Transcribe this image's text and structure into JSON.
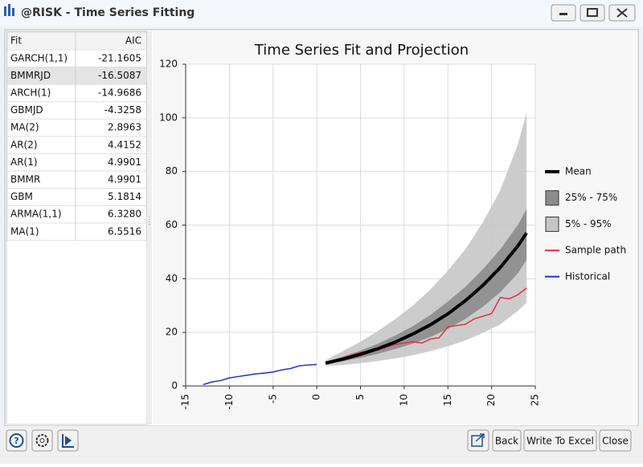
{
  "window": {
    "title": "@RISK - Time Series Fitting"
  },
  "table": {
    "columns": [
      "Fit",
      "AIC"
    ],
    "selected_row": 1,
    "rows": [
      [
        "GARCH(1,1)",
        "-21.1605"
      ],
      [
        "BMMRJD",
        "-16.5087"
      ],
      [
        "ARCH(1)",
        "-14.9686"
      ],
      [
        "GBMJD",
        "-4.3258"
      ],
      [
        "MA(2)",
        "2.8963"
      ],
      [
        "AR(2)",
        "4.4152"
      ],
      [
        "AR(1)",
        "4.9901"
      ],
      [
        "BMMR",
        "4.9901"
      ],
      [
        "GBM",
        "5.1814"
      ],
      [
        "ARMA(1,1)",
        "6.3280"
      ],
      [
        "MA(1)",
        "6.5516"
      ]
    ]
  },
  "chart_data": {
    "type": "line",
    "title": "Time Series Fit and Projection",
    "xlim": [
      -15,
      25
    ],
    "xticks": [
      -15,
      -10,
      -5,
      0,
      5,
      10,
      15,
      20,
      25
    ],
    "ylim": [
      0,
      120
    ],
    "yticks": [
      0,
      20,
      40,
      60,
      80,
      100,
      120
    ],
    "grid": true,
    "series": [
      {
        "name": "Mean",
        "type": "line",
        "color": "#000000",
        "line_width": 4,
        "x": [
          1,
          3,
          5,
          7,
          9,
          11,
          13,
          15,
          17,
          19,
          21,
          23,
          24
        ],
        "values": [
          8.5,
          10.0,
          11.8,
          13.9,
          16.4,
          19.4,
          22.8,
          26.9,
          31.8,
          37.5,
          44.2,
          52.2,
          57
        ]
      },
      {
        "name": "25% - 75%",
        "type": "band",
        "color": "#8c8c8c",
        "x": [
          1,
          3,
          5,
          7,
          9,
          11,
          13,
          15,
          17,
          19,
          21,
          23,
          24
        ],
        "lower": [
          8.2,
          9.2,
          10.5,
          12,
          13.8,
          15.8,
          18.3,
          21.3,
          25,
          29.5,
          35,
          42,
          47
        ],
        "upper": [
          9,
          11,
          13.2,
          15.8,
          18.8,
          22.3,
          26.5,
          31.5,
          37,
          43.5,
          51,
          60,
          66
        ]
      },
      {
        "name": "5% - 95%",
        "type": "band",
        "color": "#c6c6c6",
        "x": [
          1,
          3,
          5,
          7,
          9,
          11,
          13,
          15,
          17,
          19,
          21,
          23,
          24
        ],
        "lower": [
          7.5,
          7.8,
          8.5,
          9.3,
          10.3,
          11.5,
          13,
          14.8,
          17,
          19.8,
          23,
          28,
          31
        ],
        "upper": [
          9.5,
          13,
          16.5,
          20.5,
          25,
          30,
          36,
          43,
          51,
          61,
          73,
          90,
          102
        ]
      },
      {
        "name": "Sample path",
        "type": "line",
        "color": "#e0304a",
        "line_width": 1.5,
        "x": [
          1,
          2,
          3,
          4,
          5,
          6,
          7,
          8,
          9,
          10,
          11,
          12,
          13,
          14,
          15,
          16,
          17,
          18,
          19,
          20,
          21,
          22,
          23,
          24
        ],
        "values": [
          8.5,
          9.5,
          10.5,
          11.5,
          12.5,
          13,
          13.5,
          14.5,
          15.5,
          16,
          16.5,
          16,
          17.5,
          18,
          22,
          22.5,
          23,
          25,
          26,
          27,
          33,
          32.5,
          34,
          36.5
        ]
      },
      {
        "name": "Historical",
        "type": "line",
        "color": "#2030d0",
        "line_width": 1.5,
        "x": [
          -13,
          -12,
          -11,
          -10,
          -9,
          -8,
          -7,
          -6,
          -5,
          -4,
          -3,
          -2,
          -1,
          0
        ],
        "values": [
          0.5,
          1.5,
          2,
          3,
          3.5,
          4,
          4.5,
          4.8,
          5.2,
          6,
          6.5,
          7.5,
          7.8,
          8
        ]
      }
    ]
  },
  "buttons": [
    "Back",
    "Write To Excel",
    "Close"
  ]
}
